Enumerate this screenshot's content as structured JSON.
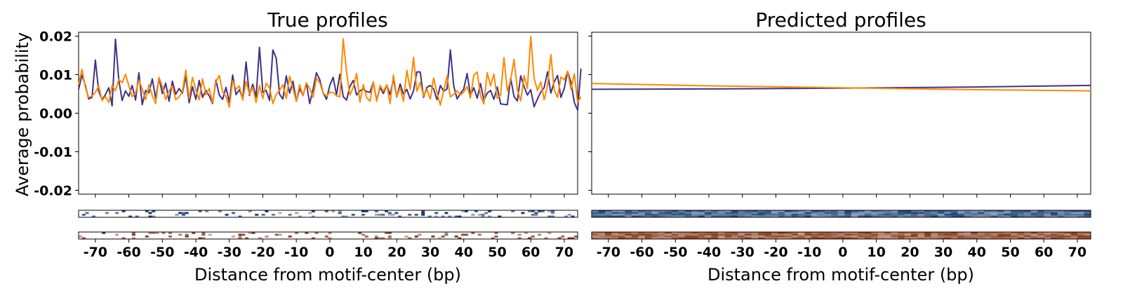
{
  "chart_data": [
    {
      "type": "line",
      "title": "True profiles",
      "xlabel": "Distance from motif-center (bp)",
      "ylabel": "Average probability",
      "xlim": [
        -75,
        74
      ],
      "ylim": [
        -0.021,
        0.021
      ],
      "yticks": [
        0.02,
        0.01,
        0.0,
        -0.01,
        -0.02
      ],
      "ytick_labels": [
        "0.02",
        "0.01",
        "0.00",
        "-0.01",
        "-0.02"
      ],
      "xticks": [
        -70,
        -60,
        -50,
        -40,
        -30,
        -20,
        -10,
        0,
        10,
        20,
        30,
        40,
        50,
        60,
        70
      ],
      "xtick_labels": [
        "-70",
        "-60",
        "-50",
        "-40",
        "-30",
        "-20",
        "-10",
        "0",
        "10",
        "20",
        "30",
        "40",
        "50",
        "60",
        "70"
      ],
      "series": [
        {
          "color": "#3f3188",
          "x_start": -75,
          "x_step": 1,
          "values": [
            0.0062,
            0.0099,
            0.0073,
            0.0037,
            0.0041,
            0.0138,
            0.0057,
            0.0035,
            0.0048,
            0.0066,
            0.0019,
            0.0192,
            0.0086,
            0.0033,
            0.0058,
            0.0044,
            0.0072,
            0.0034,
            0.0105,
            0.0022,
            0.0059,
            0.0053,
            0.0089,
            0.0038,
            0.0092,
            0.0051,
            0.0078,
            0.0031,
            0.0083,
            0.0049,
            0.0064,
            0.0052,
            0.0096,
            0.0027,
            0.0069,
            0.0036,
            0.0085,
            0.0041,
            0.0059,
            0.0045,
            0.0025,
            0.0086,
            0.0047,
            0.0036,
            0.0067,
            0.0028,
            0.0099,
            0.0048,
            0.0061,
            0.0037,
            0.0133,
            0.0046,
            0.0075,
            0.0042,
            0.0171,
            0.0054,
            0.0059,
            0.0033,
            0.0164,
            0.0143,
            0.0049,
            0.0037,
            0.0097,
            0.0052,
            0.0083,
            0.0031,
            0.0064,
            0.0046,
            0.0078,
            0.0025,
            0.0062,
            0.0105,
            0.0087,
            0.0053,
            0.0036,
            0.0072,
            0.0093,
            0.0048,
            0.0101,
            0.0043,
            0.0034,
            0.0069,
            0.0085,
            0.0047,
            0.0058,
            0.0063,
            0.0056,
            0.0054,
            0.0081,
            0.0033,
            0.0067,
            0.0051,
            0.0073,
            0.0048,
            0.0089,
            0.0042,
            0.0076,
            0.0049,
            0.0062,
            0.0037,
            0.0058,
            0.0107,
            0.0107,
            0.0041,
            0.0067,
            0.0072,
            0.0063,
            0.0035,
            0.0072,
            0.0057,
            0.0063,
            0.0164,
            0.0071,
            0.0037,
            0.0051,
            0.0063,
            0.0103,
            0.0047,
            0.0066,
            0.0039,
            0.0077,
            0.0034,
            0.0052,
            0.0059,
            0.0036,
            0.0068,
            0.0024,
            0.0023,
            0.0022,
            0.0091,
            0.0043,
            0.0032,
            0.0097,
            0.0069,
            0.0047,
            0.0061,
            0.0017,
            0.0037,
            0.0055,
            0.0066,
            0.0107,
            0.0052,
            0.0081,
            0.0098,
            0.0041,
            0.0064,
            0.0108,
            0.0081,
            0.0028,
            0.0008,
            0.0116
          ]
        },
        {
          "color": "#ff8800",
          "x_start": -75,
          "x_step": 1,
          "values": [
            0.0074,
            0.0114,
            0.0068,
            0.0041,
            0.0044,
            0.0054,
            0.0071,
            0.0033,
            0.0043,
            0.0028,
            0.0072,
            0.0058,
            0.0088,
            0.0079,
            0.0101,
            0.0071,
            0.0043,
            0.0052,
            0.0086,
            0.0063,
            0.0035,
            0.0074,
            0.0046,
            0.0025,
            0.0093,
            0.0069,
            0.0036,
            0.0058,
            0.0071,
            0.0035,
            0.0042,
            0.0056,
            0.0112,
            0.0038,
            0.0093,
            0.0061,
            0.0035,
            0.0089,
            0.0048,
            0.0064,
            0.0028,
            0.0081,
            0.0098,
            0.0055,
            0.0043,
            0.0016,
            0.0084,
            0.0062,
            0.0071,
            0.0034,
            0.0083,
            0.0049,
            0.0067,
            0.0028,
            0.0072,
            0.0038,
            0.0078,
            0.0066,
            0.0025,
            0.0049,
            0.0059,
            0.0074,
            0.0038,
            0.0096,
            0.0064,
            0.0031,
            0.0074,
            0.0045,
            0.0079,
            0.0064,
            0.0041,
            0.0091,
            0.0079,
            0.0053,
            0.0044,
            0.0054,
            0.0054,
            0.0045,
            0.0043,
            0.0193,
            0.0107,
            0.0047,
            0.0067,
            0.0103,
            0.0029,
            0.0074,
            0.0041,
            0.0031,
            0.0082,
            0.0031,
            0.0072,
            0.0057,
            0.0074,
            0.0025,
            0.0099,
            0.0043,
            0.0066,
            0.0031,
            0.0111,
            0.0062,
            0.0145,
            0.0057,
            0.008,
            0.0044,
            0.0062,
            0.0037,
            0.0091,
            0.0054,
            0.0021,
            0.0058,
            0.0096,
            0.0042,
            0.0049,
            0.0058,
            0.0047,
            0.0055,
            0.0069,
            0.0039,
            0.0099,
            0.0107,
            0.0045,
            0.0024,
            0.0105,
            0.0071,
            0.0101,
            0.0039,
            0.0047,
            0.0144,
            0.0058,
            0.0086,
            0.0139,
            0.0061,
            0.0032,
            0.0097,
            0.0064,
            0.0199,
            0.0091,
            0.0059,
            0.0081,
            0.0035,
            0.0071,
            0.0152,
            0.0061,
            0.0041,
            0.0094,
            0.0086,
            0.0109,
            0.0062,
            0.0102,
            0.0028,
            0.0043
          ]
        }
      ],
      "heatmaps": [
        {
          "cmap": "Blues",
          "style": "sparse"
        },
        {
          "cmap": "Oranges",
          "style": "sparse"
        }
      ]
    },
    {
      "type": "line",
      "title": "Predicted profiles",
      "xlabel": "Distance from motif-center (bp)",
      "ylabel": "",
      "xlim": [
        -75,
        74
      ],
      "ylim": [
        -0.021,
        0.021
      ],
      "xticks": [
        -70,
        -60,
        -50,
        -40,
        -30,
        -20,
        -10,
        0,
        10,
        20,
        30,
        40,
        50,
        60,
        70
      ],
      "xtick_labels": [
        "-70",
        "-60",
        "-50",
        "-40",
        "-30",
        "-20",
        "-10",
        "0",
        "10",
        "20",
        "30",
        "40",
        "50",
        "60",
        "70"
      ],
      "yticks": [
        0.02,
        0.01,
        0.0,
        -0.01,
        -0.02
      ],
      "series": [
        {
          "color": "#3f3188",
          "x": [
            -75,
            -40,
            0,
            40,
            74
          ],
          "values": [
            0.0062,
            0.0063,
            0.0065,
            0.0068,
            0.0072
          ]
        },
        {
          "color": "#ff8800",
          "x": [
            -75,
            -40,
            0,
            40,
            74
          ],
          "values": [
            0.0077,
            0.0071,
            0.0066,
            0.0061,
            0.0058
          ]
        }
      ],
      "heatmaps": [
        {
          "cmap": "Blues",
          "style": "dense"
        },
        {
          "cmap": "Oranges",
          "style": "dense"
        }
      ]
    }
  ]
}
